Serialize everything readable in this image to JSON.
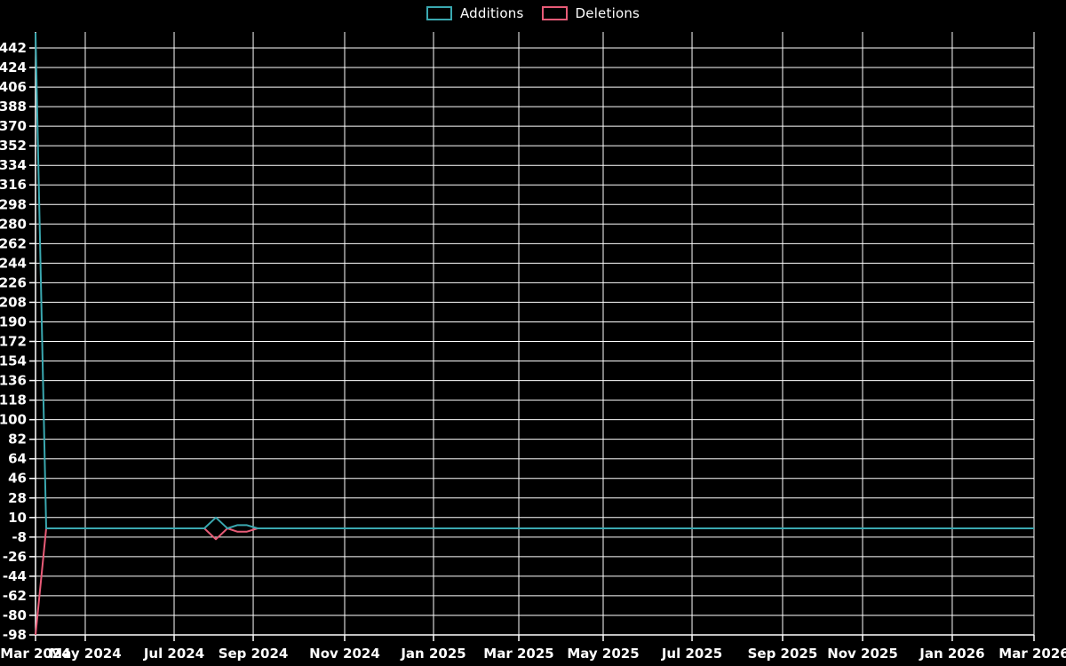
{
  "colors": {
    "background": "#000000",
    "grid": "#ffffff",
    "axis": "#ffffff",
    "text": "#ffffff",
    "additions": "#3aa8b0",
    "deletions": "#e85b77"
  },
  "legend": {
    "items": [
      {
        "label": "Additions",
        "color": "#3aa8b0"
      },
      {
        "label": "Deletions",
        "color": "#e85b77"
      }
    ]
  },
  "chart_data": {
    "type": "line",
    "title": "",
    "xlabel": "",
    "ylabel": "",
    "grid": true,
    "legend_position": "top-center",
    "x_axis": {
      "kind": "time",
      "range": [
        "Mar 2024",
        "Mar 2026"
      ],
      "ticks": [
        {
          "label": "Mar 2024",
          "f": 0.0
        },
        {
          "label": "May 2024",
          "f": 0.0498
        },
        {
          "label": "Jul 2024",
          "f": 0.1388
        },
        {
          "label": "Sep 2024",
          "f": 0.218
        },
        {
          "label": "Nov 2024",
          "f": 0.3096
        },
        {
          "label": "Jan 2025",
          "f": 0.3986
        },
        {
          "label": "Mar 2025",
          "f": 0.484
        },
        {
          "label": "May 2025",
          "f": 0.5685
        },
        {
          "label": "Jul 2025",
          "f": 0.6575
        },
        {
          "label": "Sep 2025",
          "f": 0.7482
        },
        {
          "label": "Nov 2025",
          "f": 0.8283
        },
        {
          "label": "Jan 2026",
          "f": 0.9181
        },
        {
          "label": "Mar 2026",
          "f": 1.0
        }
      ]
    },
    "y_axis": {
      "min": -98,
      "max": 456,
      "tick_step": 18,
      "tick_labels": [
        "442",
        "424",
        "406",
        "388",
        "370",
        "352",
        "334",
        "316",
        "298",
        "280",
        "262",
        "244",
        "226",
        "208",
        "190",
        "172",
        "154",
        "136",
        "118",
        "100",
        "82",
        "64",
        "46",
        "28",
        "10",
        "-8",
        "-26",
        "-44",
        "-62",
        "-80",
        "-98"
      ],
      "tick_values": [
        442,
        424,
        406,
        388,
        370,
        352,
        334,
        316,
        298,
        280,
        262,
        244,
        226,
        208,
        190,
        172,
        154,
        136,
        118,
        100,
        82,
        64,
        46,
        28,
        10,
        -8,
        -26,
        -44,
        -62,
        -80,
        -98
      ]
    },
    "series": [
      {
        "name": "Deletions",
        "color": "#e85b77",
        "points": [
          {
            "date": "2024-03-30",
            "f": 0.0,
            "v": -98
          },
          {
            "date": "2024-04-06",
            "f": 0.0107,
            "v": 0
          },
          {
            "date": "2024-07-27",
            "f": 0.169,
            "v": 0
          },
          {
            "date": "2024-08-03",
            "f": 0.1806,
            "v": -10
          },
          {
            "date": "2024-08-10",
            "f": 0.1922,
            "v": 0
          },
          {
            "date": "2024-08-17",
            "f": 0.202,
            "v": -3
          },
          {
            "date": "2024-08-24",
            "f": 0.2117,
            "v": -3
          },
          {
            "date": "2024-08-31",
            "f": 0.2224,
            "v": 0
          },
          {
            "date": "2026-03-07",
            "f": 1.0,
            "v": 0
          }
        ]
      },
      {
        "name": "Additions",
        "color": "#3aa8b0",
        "points": [
          {
            "date": "2024-03-30",
            "f": 0.0,
            "v": 456
          },
          {
            "date": "2024-04-06",
            "f": 0.0107,
            "v": 0
          },
          {
            "date": "2024-07-27",
            "f": 0.169,
            "v": 0
          },
          {
            "date": "2024-08-03",
            "f": 0.1806,
            "v": 10
          },
          {
            "date": "2024-08-10",
            "f": 0.1922,
            "v": 0
          },
          {
            "date": "2024-08-17",
            "f": 0.202,
            "v": 3
          },
          {
            "date": "2024-08-24",
            "f": 0.2117,
            "v": 3
          },
          {
            "date": "2024-08-31",
            "f": 0.2224,
            "v": 0
          },
          {
            "date": "2026-03-07",
            "f": 1.0,
            "v": 0
          }
        ]
      }
    ]
  }
}
